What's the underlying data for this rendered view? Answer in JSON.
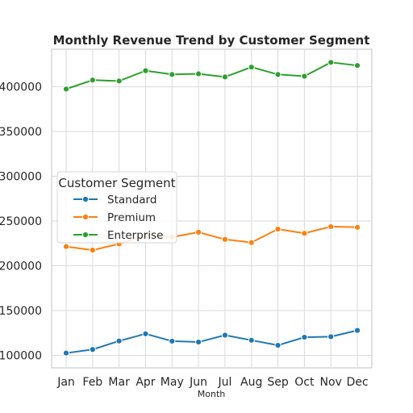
{
  "chart_data": {
    "type": "line",
    "title": "Monthly Revenue Trend by Customer Segment",
    "xlabel": "Month",
    "ylabel": "",
    "categories": [
      "Jan",
      "Feb",
      "Mar",
      "Apr",
      "May",
      "Jun",
      "Jul",
      "Aug",
      "Sep",
      "Oct",
      "Nov",
      "Dec"
    ],
    "ylim": [
      86000,
      442000
    ],
    "yticks": [
      100000,
      150000,
      200000,
      250000,
      300000,
      350000,
      400000
    ],
    "grid": true,
    "legend": {
      "title": "Customer Segment",
      "placement": "center-left"
    },
    "series": [
      {
        "name": "Standard",
        "color": "#1f77b4",
        "values": [
          102500,
          106500,
          116000,
          124000,
          115800,
          114800,
          122500,
          116800,
          111200,
          120200,
          120800,
          127800
        ]
      },
      {
        "name": "Premium",
        "color": "#ff7f0e",
        "values": [
          221500,
          217500,
          224500,
          234000,
          232000,
          237500,
          229500,
          226000,
          241000,
          236300,
          243800,
          243000
        ]
      },
      {
        "name": "Enterprise",
        "color": "#2ca02c",
        "values": [
          397500,
          407500,
          406500,
          418000,
          413800,
          414500,
          411000,
          422000,
          413800,
          411800,
          427300,
          423800
        ]
      }
    ]
  }
}
